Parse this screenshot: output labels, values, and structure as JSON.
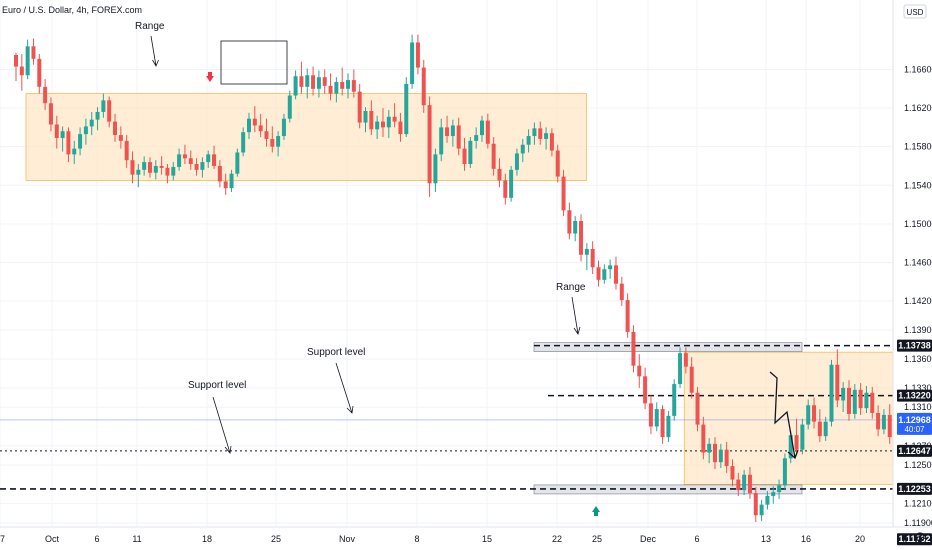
{
  "header": {
    "symbol_title": "Euro / U.S. Dollar, 4h, FOREX.com",
    "currency": "USD",
    "settings_icon": "settings-icon"
  },
  "chart_data": {
    "type": "candlestick",
    "title": "Euro / U.S. Dollar, 4h, FOREX.com",
    "ylim": [
      1.1162,
      1.1732
    ],
    "y_ticks": [
      1.119,
      1.121,
      1.125,
      1.127,
      1.131,
      1.133,
      1.136,
      1.139,
      1.142,
      1.146,
      1.15,
      1.154,
      1.158,
      1.162,
      1.166
    ],
    "x_ticks": [
      "7",
      "Oct",
      "6",
      "11",
      "18",
      "25",
      "Nov",
      "8",
      "15",
      "22",
      "25",
      "Dec",
      "6",
      "13",
      "16",
      "20"
    ],
    "levels": [
      {
        "label": "1.13738",
        "value": 1.13738,
        "style": "dashed"
      },
      {
        "label": "1.13220",
        "value": 1.1322,
        "style": "dashed"
      },
      {
        "label": "1.12647",
        "value": 1.12647,
        "style": "dotted"
      },
      {
        "label": "1.12253",
        "value": 1.12253,
        "style": "dashed"
      },
      {
        "label": "1.11732",
        "value": 1.11732,
        "style": "dotted"
      }
    ],
    "current_price": {
      "label": "1.12968",
      "countdown": "40:07",
      "value": 1.12968
    },
    "zones": [
      {
        "label": "Range",
        "x_range": [
          0.0,
          50.0
        ],
        "y_range": [
          1.1545,
          1.1635
        ]
      },
      {
        "label": "Range",
        "x_range": [
          56.5,
          84.0
        ],
        "y_range": [
          1.123,
          1.1367
        ]
      }
    ],
    "annotations": [
      "Range",
      "Range",
      "Support level",
      "Support level"
    ],
    "candles": [
      [
        0,
        1.1675,
        1.1677,
        1.1648,
        1.1663
      ],
      [
        0.5,
        1.1663,
        1.1676,
        1.1638,
        1.1654
      ],
      [
        1,
        1.1654,
        1.1691,
        1.165,
        1.1684
      ],
      [
        1.5,
        1.1684,
        1.1692,
        1.1665,
        1.1671
      ],
      [
        2,
        1.1671,
        1.1676,
        1.1635,
        1.1642
      ],
      [
        2.5,
        1.1642,
        1.165,
        1.1618,
        1.1625
      ],
      [
        3,
        1.1625,
        1.1631,
        1.1596,
        1.1603
      ],
      [
        3.5,
        1.1603,
        1.1612,
        1.1578,
        1.1589
      ],
      [
        4,
        1.1589,
        1.1601,
        1.1575,
        1.1596
      ],
      [
        4.5,
        1.1596,
        1.16,
        1.1564,
        1.1572
      ],
      [
        5,
        1.1572,
        1.1586,
        1.1562,
        1.1578
      ],
      [
        5.5,
        1.1578,
        1.16,
        1.1571,
        1.1593
      ],
      [
        6,
        1.1593,
        1.1609,
        1.1582,
        1.1601
      ],
      [
        6.5,
        1.1601,
        1.1616,
        1.1592,
        1.1608
      ],
      [
        7,
        1.1608,
        1.1621,
        1.1597,
        1.1616
      ],
      [
        7.5,
        1.1616,
        1.1635,
        1.161,
        1.1628
      ],
      [
        8,
        1.1628,
        1.1632,
        1.16,
        1.1606
      ],
      [
        8.5,
        1.1606,
        1.1614,
        1.1585,
        1.1592
      ],
      [
        9,
        1.1592,
        1.1601,
        1.1578,
        1.1586
      ],
      [
        9.5,
        1.1586,
        1.1592,
        1.1558,
        1.1566
      ],
      [
        10,
        1.1566,
        1.1575,
        1.1542,
        1.1551
      ],
      [
        10.5,
        1.1551,
        1.1562,
        1.1538,
        1.1556
      ],
      [
        11,
        1.1556,
        1.157,
        1.155,
        1.1564
      ],
      [
        11.5,
        1.1564,
        1.1569,
        1.1548,
        1.1553
      ],
      [
        12,
        1.1553,
        1.1566,
        1.1546,
        1.156
      ],
      [
        12.5,
        1.156,
        1.157,
        1.1551,
        1.1558
      ],
      [
        13,
        1.1558,
        1.1562,
        1.1542,
        1.155
      ],
      [
        13.5,
        1.155,
        1.1564,
        1.1545,
        1.1559
      ],
      [
        14,
        1.1559,
        1.1578,
        1.1555,
        1.1572
      ],
      [
        14.5,
        1.1572,
        1.1582,
        1.1562,
        1.1568
      ],
      [
        15,
        1.1568,
        1.1576,
        1.1556,
        1.1562
      ],
      [
        15.5,
        1.1562,
        1.1568,
        1.155,
        1.1556
      ],
      [
        16,
        1.1556,
        1.1569,
        1.1548,
        1.1564
      ],
      [
        16.5,
        1.1564,
        1.1576,
        1.1558,
        1.1572
      ],
      [
        17,
        1.1572,
        1.1581,
        1.1557,
        1.156
      ],
      [
        17.5,
        1.156,
        1.1566,
        1.1538,
        1.1544
      ],
      [
        18,
        1.1544,
        1.1552,
        1.153,
        1.1537
      ],
      [
        18.5,
        1.1537,
        1.1556,
        1.1533,
        1.1552
      ],
      [
        19,
        1.1552,
        1.1578,
        1.1549,
        1.1574
      ],
      [
        19.5,
        1.1574,
        1.16,
        1.157,
        1.1595
      ],
      [
        20,
        1.1595,
        1.1615,
        1.1588,
        1.1609
      ],
      [
        20.5,
        1.1609,
        1.1622,
        1.1595,
        1.1602
      ],
      [
        21,
        1.1602,
        1.1614,
        1.159,
        1.1596
      ],
      [
        21.5,
        1.1596,
        1.1609,
        1.158,
        1.1588
      ],
      [
        22,
        1.1588,
        1.1601,
        1.1574,
        1.158
      ],
      [
        22.5,
        1.158,
        1.1596,
        1.157,
        1.1591
      ],
      [
        23,
        1.1591,
        1.1614,
        1.1587,
        1.1609
      ],
      [
        23.5,
        1.1609,
        1.1638,
        1.1605,
        1.1633
      ],
      [
        24,
        1.1633,
        1.1659,
        1.1629,
        1.1653
      ],
      [
        24.5,
        1.1653,
        1.1668,
        1.1635,
        1.1642
      ],
      [
        25,
        1.1642,
        1.1661,
        1.163,
        1.1654
      ],
      [
        25.5,
        1.1654,
        1.1663,
        1.1633,
        1.164
      ],
      [
        26,
        1.164,
        1.1659,
        1.1631,
        1.1652
      ],
      [
        26.5,
        1.1652,
        1.166,
        1.1635,
        1.1643
      ],
      [
        27,
        1.1643,
        1.1656,
        1.1628,
        1.1635
      ],
      [
        27.5,
        1.1635,
        1.1652,
        1.1626,
        1.1647
      ],
      [
        28,
        1.1647,
        1.1662,
        1.1633,
        1.164
      ],
      [
        28.5,
        1.164,
        1.1656,
        1.163,
        1.1649
      ],
      [
        29,
        1.1649,
        1.166,
        1.1631,
        1.1637
      ],
      [
        29.5,
        1.1637,
        1.1645,
        1.1599,
        1.1605
      ],
      [
        30,
        1.1605,
        1.1621,
        1.1595,
        1.1617
      ],
      [
        30.5,
        1.1617,
        1.1628,
        1.1592,
        1.1598
      ],
      [
        31,
        1.1598,
        1.1612,
        1.1588,
        1.1606
      ],
      [
        31.5,
        1.1606,
        1.162,
        1.159,
        1.16
      ],
      [
        32,
        1.16,
        1.1618,
        1.1589,
        1.1611
      ],
      [
        32.5,
        1.1611,
        1.1625,
        1.16,
        1.1606
      ],
      [
        33,
        1.1606,
        1.1615,
        1.1585,
        1.1593
      ],
      [
        33.5,
        1.1593,
        1.1652,
        1.159,
        1.1645
      ],
      [
        34,
        1.1645,
        1.1696,
        1.164,
        1.1688
      ],
      [
        34.5,
        1.1688,
        1.1696,
        1.1655,
        1.1662
      ],
      [
        35,
        1.1662,
        1.167,
        1.1615,
        1.1623
      ],
      [
        35.5,
        1.1623,
        1.1632,
        1.1528,
        1.1542
      ],
      [
        36,
        1.1542,
        1.1578,
        1.1533,
        1.1572
      ],
      [
        36.5,
        1.1572,
        1.1609,
        1.1565,
        1.16
      ],
      [
        37,
        1.16,
        1.1612,
        1.1584,
        1.1591
      ],
      [
        37.5,
        1.1591,
        1.1608,
        1.158,
        1.1602
      ],
      [
        38,
        1.1602,
        1.161,
        1.1571,
        1.1578
      ],
      [
        38.5,
        1.1578,
        1.1589,
        1.1555,
        1.1562
      ],
      [
        39,
        1.1562,
        1.159,
        1.1558,
        1.1586
      ],
      [
        39.5,
        1.1586,
        1.16,
        1.1578,
        1.1592
      ],
      [
        40,
        1.1592,
        1.1612,
        1.1585,
        1.1607
      ],
      [
        40.5,
        1.1607,
        1.1614,
        1.1578,
        1.1583
      ],
      [
        41,
        1.1583,
        1.159,
        1.155,
        1.1557
      ],
      [
        41.5,
        1.1557,
        1.1568,
        1.1538,
        1.1545
      ],
      [
        42,
        1.1545,
        1.1552,
        1.152,
        1.1527
      ],
      [
        42.5,
        1.1527,
        1.156,
        1.1523,
        1.1556
      ],
      [
        43,
        1.1556,
        1.1578,
        1.155,
        1.1573
      ],
      [
        43.5,
        1.1573,
        1.1588,
        1.1564,
        1.1582
      ],
      [
        44,
        1.1582,
        1.1598,
        1.1574,
        1.1591
      ],
      [
        44.5,
        1.1591,
        1.1605,
        1.1582,
        1.1599
      ],
      [
        45,
        1.1599,
        1.1606,
        1.1582,
        1.1588
      ],
      [
        45.5,
        1.1588,
        1.16,
        1.1577,
        1.1594
      ],
      [
        46,
        1.1594,
        1.1599,
        1.157,
        1.1576
      ],
      [
        46.5,
        1.1576,
        1.1582,
        1.1543,
        1.1549
      ],
      [
        47,
        1.1549,
        1.1556,
        1.1508,
        1.1514
      ],
      [
        47.5,
        1.1514,
        1.1522,
        1.1484,
        1.149
      ],
      [
        48,
        1.149,
        1.1508,
        1.1482,
        1.1503
      ],
      [
        48.5,
        1.1503,
        1.151,
        1.1461,
        1.1468
      ],
      [
        49,
        1.1468,
        1.148,
        1.1452,
        1.1474
      ],
      [
        49.5,
        1.1474,
        1.1482,
        1.1448,
        1.1455
      ],
      [
        50,
        1.1455,
        1.1462,
        1.1435,
        1.1442
      ],
      [
        50.5,
        1.1442,
        1.1458,
        1.1438,
        1.1453
      ],
      [
        51,
        1.1453,
        1.1463,
        1.1443,
        1.1457
      ],
      [
        51.5,
        1.1457,
        1.1466,
        1.1432,
        1.1438
      ],
      [
        52,
        1.1438,
        1.1445,
        1.1415,
        1.1421
      ],
      [
        52.5,
        1.1421,
        1.1428,
        1.1382,
        1.1388
      ],
      [
        53,
        1.1388,
        1.1395,
        1.1346,
        1.1353
      ],
      [
        53.5,
        1.1353,
        1.1365,
        1.133,
        1.1342
      ],
      [
        54,
        1.1342,
        1.1351,
        1.1308,
        1.1314
      ],
      [
        54.5,
        1.1314,
        1.1322,
        1.1282,
        1.129
      ],
      [
        55,
        1.129,
        1.1315,
        1.1285,
        1.1308
      ],
      [
        55.5,
        1.1308,
        1.1312,
        1.1272,
        1.1279
      ],
      [
        56,
        1.1279,
        1.1306,
        1.1274,
        1.1301
      ],
      [
        56.5,
        1.1301,
        1.1339,
        1.1296,
        1.1334
      ],
      [
        57,
        1.1334,
        1.1372,
        1.133,
        1.1366
      ],
      [
        57.5,
        1.1366,
        1.1372,
        1.1345,
        1.1352
      ],
      [
        58,
        1.1352,
        1.1362,
        1.1319,
        1.1325
      ],
      [
        58.5,
        1.1325,
        1.1331,
        1.1285,
        1.1292
      ],
      [
        59,
        1.1292,
        1.13,
        1.1256,
        1.1263
      ],
      [
        59.5,
        1.1263,
        1.1278,
        1.1252,
        1.1272
      ],
      [
        60,
        1.1272,
        1.1279,
        1.1246,
        1.1253
      ],
      [
        60.5,
        1.1253,
        1.1272,
        1.1247,
        1.1266
      ],
      [
        61,
        1.1266,
        1.1274,
        1.1242,
        1.1249
      ],
      [
        61.5,
        1.1249,
        1.1256,
        1.1228,
        1.1235
      ],
      [
        62,
        1.1235,
        1.1242,
        1.1218,
        1.1224
      ],
      [
        62.5,
        1.1224,
        1.1245,
        1.1219,
        1.124
      ],
      [
        63,
        1.124,
        1.1248,
        1.1215,
        1.1221
      ],
      [
        63.5,
        1.1221,
        1.1227,
        1.1191,
        1.1198
      ],
      [
        64,
        1.1198,
        1.1214,
        1.1192,
        1.1209
      ],
      [
        64.5,
        1.1209,
        1.1223,
        1.1204,
        1.1218
      ],
      [
        65,
        1.1218,
        1.1228,
        1.121,
        1.1222
      ],
      [
        65.5,
        1.1222,
        1.1235,
        1.1215,
        1.1229
      ],
      [
        66,
        1.1229,
        1.1262,
        1.1225,
        1.1257
      ],
      [
        66.5,
        1.1257,
        1.1285,
        1.1252,
        1.1281
      ],
      [
        67,
        1.1281,
        1.1298,
        1.126,
        1.1266
      ],
      [
        67.5,
        1.1266,
        1.1298,
        1.1261,
        1.1292
      ],
      [
        68,
        1.1292,
        1.1318,
        1.1287,
        1.1312
      ],
      [
        68.5,
        1.1312,
        1.132,
        1.1288,
        1.1295
      ],
      [
        69,
        1.1295,
        1.1308,
        1.1274,
        1.128
      ],
      [
        69.5,
        1.128,
        1.13,
        1.1275,
        1.1295
      ],
      [
        70,
        1.1295,
        1.1359,
        1.129,
        1.1354
      ],
      [
        70.5,
        1.1354,
        1.137,
        1.131,
        1.1317
      ],
      [
        71,
        1.1317,
        1.1336,
        1.1305,
        1.133
      ],
      [
        71.5,
        1.133,
        1.1338,
        1.1296,
        1.1303
      ],
      [
        72,
        1.1303,
        1.1334,
        1.1298,
        1.1328
      ],
      [
        72.5,
        1.1328,
        1.1335,
        1.1302,
        1.1309
      ],
      [
        73,
        1.1309,
        1.1332,
        1.1304,
        1.1325
      ],
      [
        73.5,
        1.1325,
        1.1331,
        1.1298,
        1.1304
      ],
      [
        74,
        1.1304,
        1.1312,
        1.128,
        1.1287
      ],
      [
        74.5,
        1.1287,
        1.1308,
        1.1282,
        1.1302
      ],
      [
        75,
        1.1302,
        1.1313,
        1.1272,
        1.1279
      ],
      [
        75.5,
        1.1279,
        1.1298,
        1.1273,
        1.1293
      ],
      [
        76,
        1.1293,
        1.13,
        1.1265,
        1.1272
      ],
      [
        76.5,
        1.1272,
        1.1279,
        1.1255,
        1.1262
      ],
      [
        77,
        1.1262,
        1.1278,
        1.1257,
        1.1273
      ],
      [
        77.5,
        1.1273,
        1.128,
        1.1234,
        1.1241
      ],
      [
        78,
        1.1241,
        1.1271,
        1.1237,
        1.1266
      ],
      [
        78.5,
        1.1266,
        1.129,
        1.1261,
        1.1285
      ],
      [
        79,
        1.1285,
        1.131,
        1.128,
        1.1305
      ],
      [
        79.5,
        1.1305,
        1.1335,
        1.13,
        1.1329
      ],
      [
        80,
        1.1329,
        1.1347,
        1.131,
        1.1317
      ],
      [
        80.5,
        1.1317,
        1.1324,
        1.1285,
        1.1292
      ],
      [
        81,
        1.1292,
        1.1302,
        1.1274,
        1.1296
      ],
      [
        81.5,
        1.1296,
        1.1315,
        1.1291,
        1.131
      ],
      [
        82,
        1.131,
        1.1318,
        1.129,
        1.12968
      ]
    ]
  },
  "drawings": {
    "range_label_1": "Range",
    "range_label_2": "Range",
    "support_label_1": "Support level",
    "support_label_2": "Support level"
  },
  "colors": {
    "up": "#26a69a",
    "down": "#ef5350",
    "zone_fill": "#ffe0b2",
    "zone_border": "#ffb74d",
    "level_badge_bg": "#131722",
    "current_price_bg": "#2962ff",
    "arrow_up": "#089981",
    "arrow_down": "#f23645",
    "projection": "#131722"
  }
}
